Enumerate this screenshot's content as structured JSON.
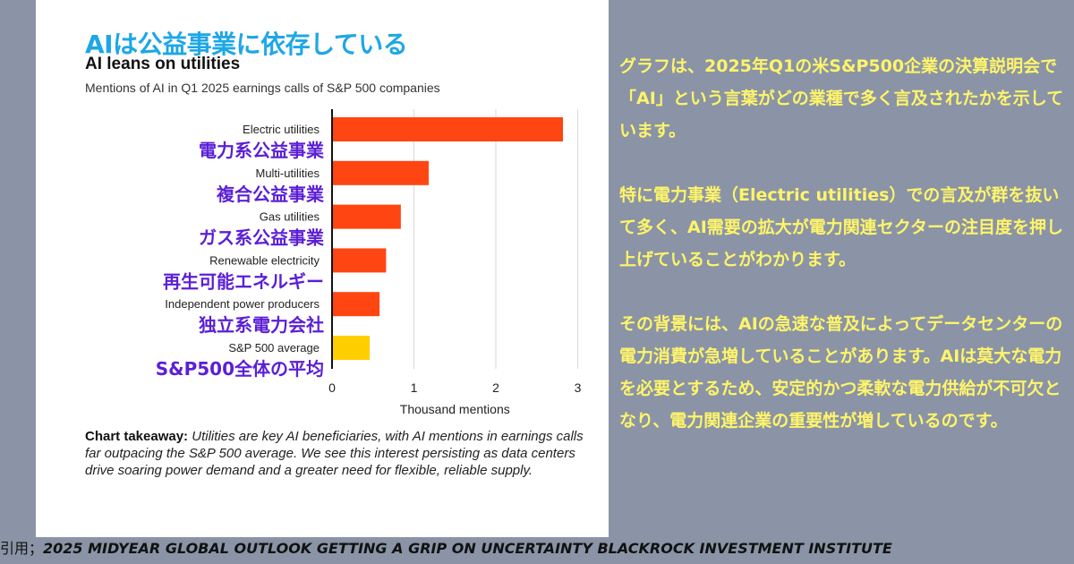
{
  "chart": {
    "title_jp": "AIは公益事業に依存している",
    "title_en": "AI leans on utilities",
    "subtitle": "Mentions of AI in Q1 2025 earnings calls of S&P 500 companies",
    "takeaway_label": "Chart takeaway:",
    "takeaway_text": " Utilities are key AI beneficiaries, with AI mentions in earnings calls far outpacing the S&P 500 average. We see this interest persisting as data centers drive soaring power demand and a greater need for flexible, reliable supply."
  },
  "chart_data": {
    "type": "bar",
    "orientation": "horizontal",
    "title": "AI leans on utilities",
    "subtitle": "Mentions of AI in Q1 2025 earnings calls of S&P 500 companies",
    "xlabel": "Thousand mentions",
    "ylabel": "",
    "xlim": [
      0,
      3
    ],
    "xticks": [
      0,
      1,
      2,
      3
    ],
    "grid": true,
    "categories": [
      "Electric utilities",
      "Multi-utilities",
      "Gas utilities",
      "Renewable electricity",
      "Independent power producers",
      "S&P 500 average"
    ],
    "categories_jp": [
      "電力系公益事業",
      "複合公益事業",
      "ガス系公益事業",
      "再生可能エネルギー",
      "独立系電力会社",
      "S&P500全体の平均"
    ],
    "values": [
      2.82,
      1.18,
      0.84,
      0.66,
      0.58,
      0.46
    ],
    "colors": [
      "#ff4512",
      "#ff4512",
      "#ff4512",
      "#ff4512",
      "#ff4512",
      "#ffce00"
    ]
  },
  "side": {
    "p1": "グラフは、2025年Q1の米S&P500企業の決算説明会で「AI」という言葉がどの業種で多く言及されたかを示しています。",
    "p2": "特に電力事業（Electric utilities）での言及が群を抜いて多く、AI需要の拡大が電力関連セクターの注目度を押し上げていることがわかります。",
    "p3": "その背景には、AIの急速な普及によってデータセンターの電力消費が急増していることがあります。AIは莫大な電力を必要とするため、安定的かつ柔軟な電力供給が不可欠となり、電力関連企業の重要性が増しているのです。"
  },
  "citation": {
    "prefix": "引用；",
    "source": "2025 MIDYEAR GLOBAL OUTLOOK GETTING A GRIP ON UNCERTAINTY BLACKROCK INVESTMENT INSTITUTE"
  }
}
